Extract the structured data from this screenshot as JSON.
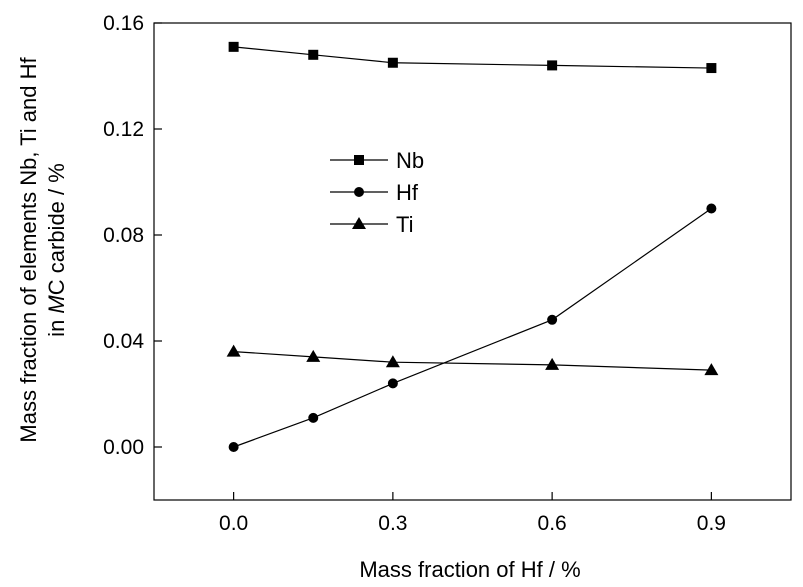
{
  "chart_data": {
    "type": "line",
    "title": "",
    "xlabel": "Mass fraction of Hf / %",
    "ylabel_line1": "Mass fraction of elements Nb, Ti and Hf",
    "ylabel_line2_prefix": "in ",
    "ylabel_line2_italic": "M",
    "ylabel_line2_suffix": "C carbide / %",
    "xlim": [
      -0.15,
      1.05
    ],
    "ylim": [
      -0.02,
      0.16
    ],
    "xticks": [
      0.0,
      0.3,
      0.6,
      0.9
    ],
    "xtick_labels": [
      "0.0",
      "0.3",
      "0.6",
      "0.9"
    ],
    "yticks": [
      0.0,
      0.04,
      0.08,
      0.12,
      0.16
    ],
    "ytick_labels": [
      "0.00",
      "0.04",
      "0.08",
      "0.12",
      "0.16"
    ],
    "legend_position": "upper-middle",
    "grid": false,
    "x": [
      0.0,
      0.15,
      0.3,
      0.6,
      0.9
    ],
    "series": [
      {
        "name": "Nb",
        "marker": "square",
        "values": [
          0.151,
          0.148,
          0.145,
          0.144,
          0.143
        ]
      },
      {
        "name": "Hf",
        "marker": "circle",
        "values": [
          0.0,
          0.011,
          0.024,
          0.048,
          0.09
        ]
      },
      {
        "name": "Ti",
        "marker": "triangle",
        "values": [
          0.036,
          0.034,
          0.032,
          0.031,
          0.029
        ]
      }
    ]
  }
}
